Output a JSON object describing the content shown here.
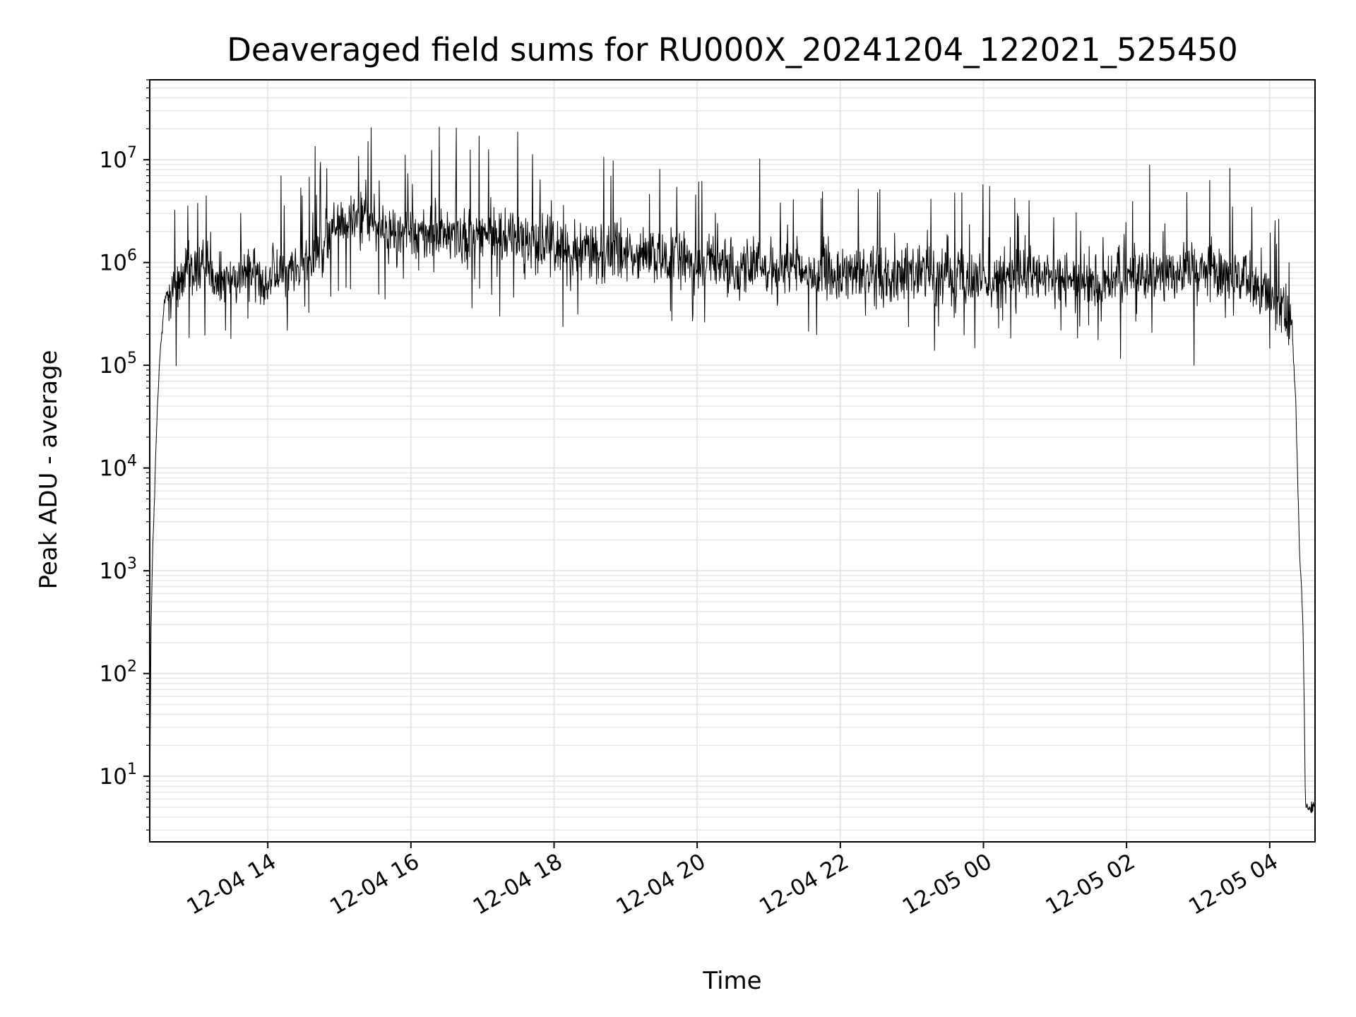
{
  "chart_data": {
    "type": "line",
    "title": "Deaveraged field sums for RU000X_20241204_122021_525450",
    "xlabel": "Time",
    "ylabel": "Peak ADU - average",
    "yscale": "log",
    "ylim": [
      2.3,
      60000000
    ],
    "xlim": [
      "2024-12-04 12:21",
      "2024-12-05 04:38"
    ],
    "grid": true,
    "line_color": "#000000",
    "grid_color": "#e6e6e6",
    "x_ticks": [
      {
        "time": "2024-12-04 14:00",
        "label": "12-04 14"
      },
      {
        "time": "2024-12-04 16:00",
        "label": "12-04 16"
      },
      {
        "time": "2024-12-04 18:00",
        "label": "12-04 18"
      },
      {
        "time": "2024-12-04 20:00",
        "label": "12-04 20"
      },
      {
        "time": "2024-12-04 22:00",
        "label": "12-04 22"
      },
      {
        "time": "2024-12-05 00:00",
        "label": "12-05 00"
      },
      {
        "time": "2024-12-05 02:00",
        "label": "12-05 02"
      },
      {
        "time": "2024-12-05 04:00",
        "label": "12-05 04"
      }
    ],
    "y_ticks": [
      {
        "value": 10,
        "base": "10",
        "exp": "1"
      },
      {
        "value": 100,
        "base": "10",
        "exp": "2"
      },
      {
        "value": 1000,
        "base": "10",
        "exp": "3"
      },
      {
        "value": 10000,
        "base": "10",
        "exp": "4"
      },
      {
        "value": 100000,
        "base": "10",
        "exp": "5"
      },
      {
        "value": 1000000,
        "base": "10",
        "exp": "6"
      },
      {
        "value": 10000000,
        "base": "10",
        "exp": "7"
      }
    ],
    "series": [
      {
        "x": [
          "2024-12-04 12:21",
          "2024-12-04 12:22",
          "2024-12-04 12:23",
          "2024-12-04 12:25",
          "2024-12-04 12:27",
          "2024-12-04 12:30",
          "2024-12-04 12:33",
          "2024-12-04 12:36",
          "2024-12-04 12:40",
          "2024-12-04 12:45",
          "2024-12-04 12:50",
          "2024-12-04 13:00",
          "2024-12-04 13:10",
          "2024-12-04 13:20",
          "2024-12-04 13:30",
          "2024-12-04 13:45",
          "2024-12-04 14:00",
          "2024-12-04 14:30",
          "2024-12-04 15:00",
          "2024-12-04 15:20",
          "2024-12-04 15:45",
          "2024-12-04 16:00",
          "2024-12-04 16:30",
          "2024-12-04 17:00",
          "2024-12-04 17:30",
          "2024-12-04 18:00",
          "2024-12-04 18:30",
          "2024-12-04 19:00",
          "2024-12-04 19:30",
          "2024-12-04 20:00",
          "2024-12-04 20:30",
          "2024-12-04 21:00",
          "2024-12-04 21:30",
          "2024-12-04 22:00",
          "2024-12-04 22:30",
          "2024-12-04 23:00",
          "2024-12-04 23:30",
          "2024-12-05 00:00",
          "2024-12-05 00:30",
          "2024-12-05 01:00",
          "2024-12-05 01:30",
          "2024-12-05 02:00",
          "2024-12-05 02:30",
          "2024-12-05 03:00",
          "2024-12-05 03:30",
          "2024-12-05 03:50",
          "2024-12-05 04:10",
          "2024-12-05 04:18",
          "2024-12-05 04:22",
          "2024-12-05 04:25",
          "2024-12-05 04:28",
          "2024-12-05 04:30",
          "2024-12-05 04:33",
          "2024-12-05 04:35",
          "2024-12-05 04:38"
        ],
        "y": [
          5,
          200,
          1000,
          5000,
          30000,
          150000,
          400000,
          500000,
          500000,
          600000,
          700000,
          800000,
          1000000,
          700000,
          700000,
          800000,
          700000,
          900000,
          2500000,
          3000000,
          1800000,
          2000000,
          1800000,
          1900000,
          1700000,
          1400000,
          1400000,
          1200000,
          1100000,
          1000000,
          900000,
          900000,
          800000,
          750000,
          800000,
          800000,
          750000,
          700000,
          700000,
          700000,
          650000,
          800000,
          800000,
          850000,
          800000,
          550000,
          400000,
          300000,
          40000,
          1500,
          300,
          5,
          5,
          5,
          5
        ]
      }
    ]
  }
}
